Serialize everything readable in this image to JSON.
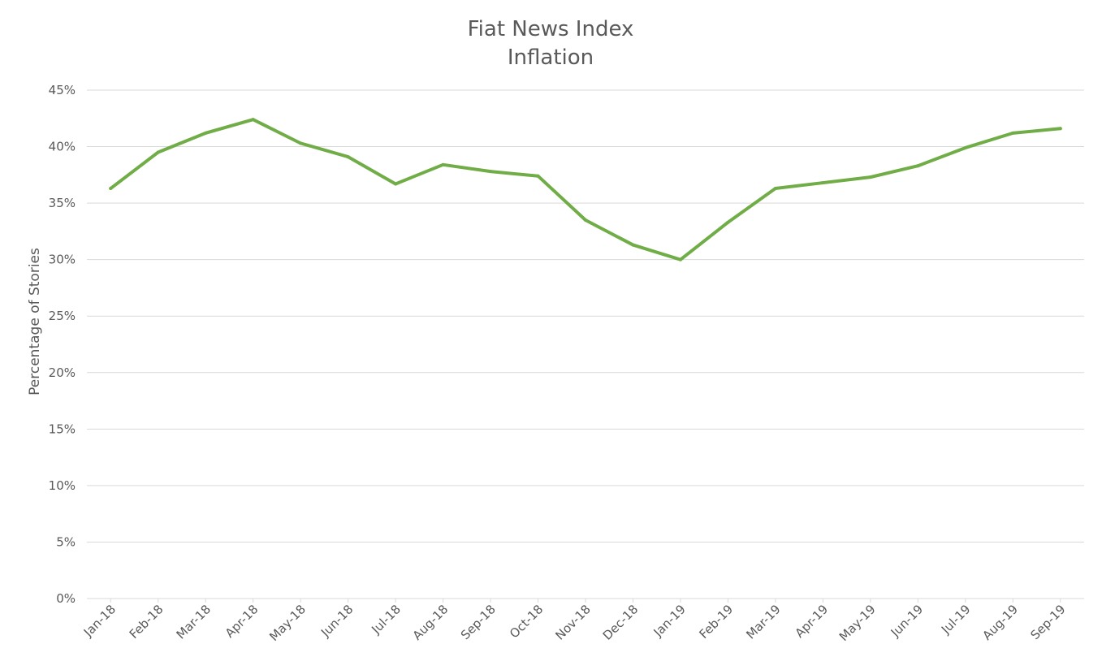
{
  "chart_data": {
    "type": "line",
    "title": "Fiat News Index",
    "subtitle": "Inflation",
    "xlabel": "",
    "ylabel": "Percentage of Stories",
    "ylim": [
      0,
      45
    ],
    "y_tick_step": 5,
    "y_tick_suffix": "%",
    "grid": true,
    "legend": "none",
    "categories": [
      "Jan-18",
      "Feb-18",
      "Mar-18",
      "Apr-18",
      "May-18",
      "Jun-18",
      "Jul-18",
      "Aug-18",
      "Sep-18",
      "Oct-18",
      "Nov-18",
      "Dec-18",
      "Jan-19",
      "Feb-19",
      "Mar-19",
      "Apr-19",
      "May-19",
      "Jun-19",
      "Jul-19",
      "Aug-19",
      "Sep-19"
    ],
    "series": [
      {
        "color": "#70ad47",
        "values": [
          36.3,
          39.5,
          41.2,
          42.4,
          40.3,
          39.1,
          36.7,
          38.4,
          37.8,
          37.4,
          33.5,
          31.3,
          30.0,
          33.3,
          36.3,
          36.8,
          37.3,
          38.3,
          39.9,
          41.2,
          41.6
        ]
      }
    ]
  }
}
